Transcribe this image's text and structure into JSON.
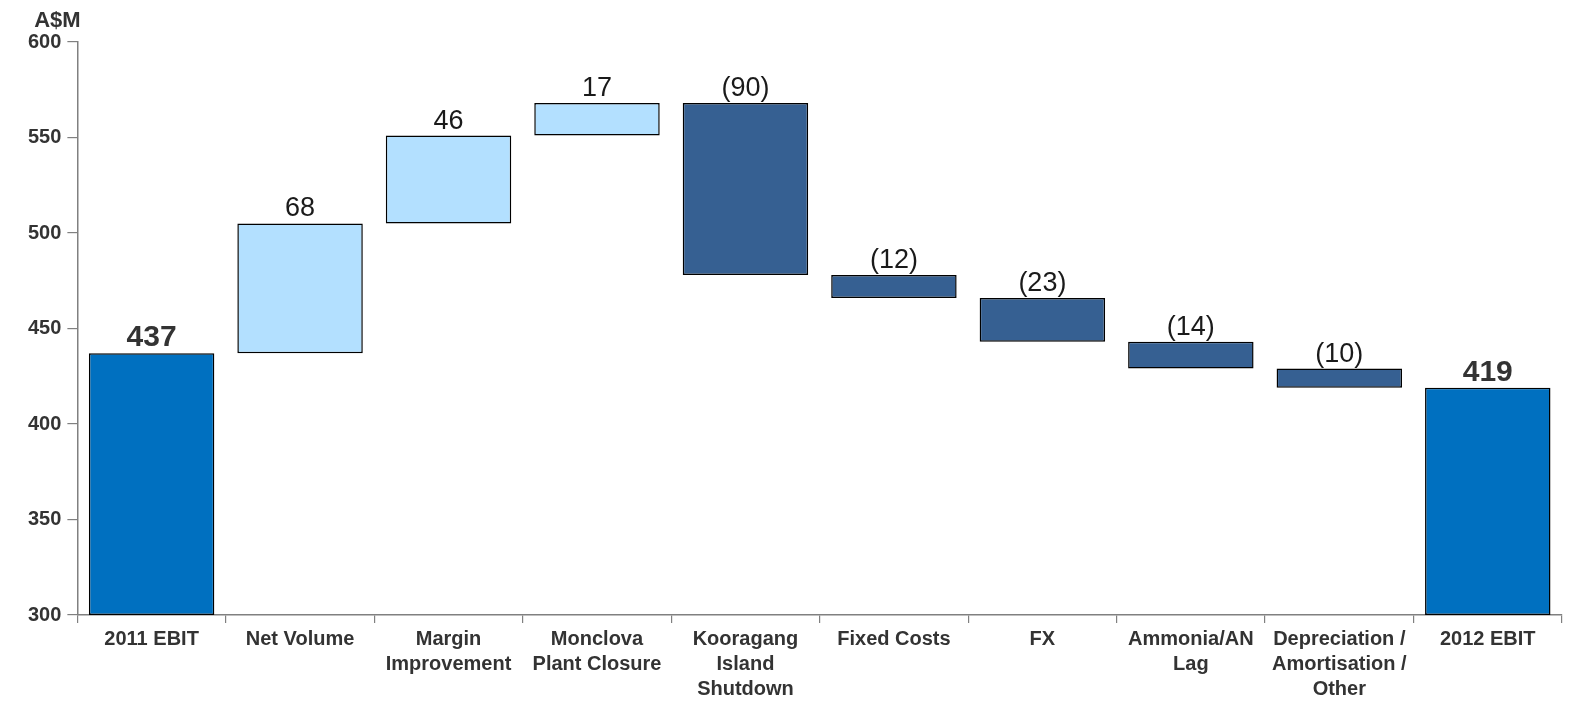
{
  "chart_data": {
    "type": "bar",
    "ylabel": "A$M",
    "categories": [
      "2011 EBIT",
      "Net Volume",
      "Margin Improvement",
      "Monclova Plant Closure",
      "Kooragang Island Shutdown",
      "Fixed Costs",
      "FX",
      "Ammonia/AN Lag",
      "Depreciation / Amortisation / Other",
      "2012 EBIT"
    ],
    "values": [
      437,
      68,
      46,
      17,
      -90,
      -12,
      -23,
      -14,
      -10,
      419
    ],
    "base": [
      null,
      437,
      505,
      551,
      568,
      478,
      466,
      443,
      429,
      null
    ],
    "colors": [
      "#0070c0",
      "#b3e0ff",
      "#b3e0ff",
      "#b3e0ff",
      "#366092",
      "#366092",
      "#366092",
      "#366092",
      "#366092",
      "#0070c0"
    ],
    "value_labels": [
      "437",
      "68",
      "46",
      "17",
      "(90)",
      "(12)",
      "(23)",
      "(14)",
      "(10)",
      "419"
    ],
    "ylim": [
      300,
      600
    ],
    "yticks": [
      300,
      350,
      400,
      450,
      500,
      550,
      600
    ]
  }
}
